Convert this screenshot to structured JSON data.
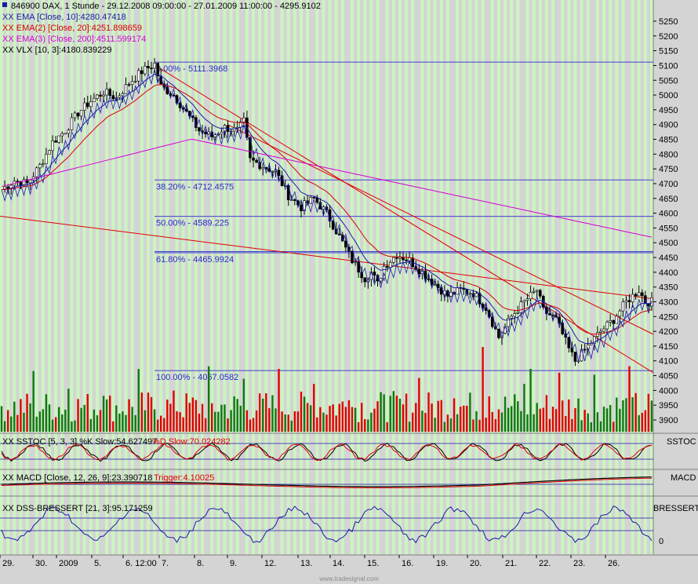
{
  "header": {
    "title": "846900 DAX, 1 Stunde - 29.12.2008 09:00:00 - 27.01.2009 11:00:00 - 4295.9102",
    "legend": [
      {
        "text": "XX EMA [Close, 10]:4280.47418",
        "color": "#1a1aa8"
      },
      {
        "text": "XX EMA(2) [Close, 20]:4251.898659",
        "color": "#d40000"
      },
      {
        "text": "XX EMA(3) [Close, 200]:4511.599174",
        "color": "#d400d4"
      },
      {
        "text": "XX VLX [10, 3]:4180.839229",
        "color": "#000000"
      }
    ]
  },
  "panels": {
    "sstoc": {
      "legend": "XX SSTOC [5, 3, 3] %K Slow:54.627497",
      "legend2": "%D Slow:70.024282",
      "tag": "SSTOC"
    },
    "macd": {
      "legend": "XX MACD [Close, 12, 26, 9]:23.390718",
      "legend2": "Trigger:4.10025",
      "tag": "MACD"
    },
    "dss": {
      "legend": "XX DSS-BRESSERT [21, 3]:95.171259",
      "tag": "BRESSERT",
      "zero_label": "0"
    }
  },
  "watermark": "www.tradesignal.com",
  "chart_data": {
    "type": "candlestick",
    "title": "846900 DAX, 1 Stunde - 29.12.2008 09:00:00 - 27.01.2009 11:00:00 - 4295.9102",
    "yticks": [
      3900,
      3950,
      4000,
      4050,
      4100,
      4150,
      4200,
      4250,
      4300,
      4350,
      4400,
      4450,
      4500,
      4550,
      4600,
      4650,
      4700,
      4750,
      4800,
      4850,
      4900,
      4950,
      5000,
      5050,
      5100,
      5150,
      5200,
      5250
    ],
    "ylim": [
      3870,
      5290
    ],
    "x_labels": [
      "29.",
      "30.",
      "2009",
      "5.",
      "6. 12:00",
      "7.",
      "8.",
      "9.",
      "12.",
      "13.",
      "14.",
      "15.",
      "16.",
      "19.",
      "20.",
      "21.",
      "22.",
      "23.",
      "26."
    ],
    "fibonacci": [
      {
        "label": "0.00% - 5111.3968",
        "value": 5111.3968
      },
      {
        "label": "38.20% - 4712.4575",
        "value": 4712.4575
      },
      {
        "label": "50.00% - 4589.225",
        "value": 4589.225
      },
      {
        "label": "61.80% - 4465.9924",
        "value": 4465.9924
      },
      {
        "label": "100.00% - 4067.0582",
        "value": 4067.0582
      }
    ],
    "close_path": [
      [
        0,
        4680
      ],
      [
        4,
        4710
      ],
      [
        8,
        4700
      ],
      [
        12,
        4760
      ],
      [
        16,
        4840
      ],
      [
        20,
        4880
      ],
      [
        24,
        4940
      ],
      [
        28,
        4980
      ],
      [
        32,
        5010
      ],
      [
        36,
        4990
      ],
      [
        40,
        5040
      ],
      [
        44,
        5080
      ],
      [
        48,
        5105
      ],
      [
        50,
        5030
      ],
      [
        54,
        5000
      ],
      [
        58,
        4940
      ],
      [
        62,
        4880
      ],
      [
        66,
        4860
      ],
      [
        70,
        4890
      ],
      [
        74,
        4880
      ],
      [
        76,
        4910
      ],
      [
        78,
        4780
      ],
      [
        82,
        4760
      ],
      [
        86,
        4740
      ],
      [
        90,
        4660
      ],
      [
        94,
        4620
      ],
      [
        98,
        4650
      ],
      [
        102,
        4600
      ],
      [
        106,
        4520
      ],
      [
        110,
        4440
      ],
      [
        114,
        4380
      ],
      [
        116,
        4400
      ],
      [
        118,
        4360
      ],
      [
        120,
        4420
      ],
      [
        124,
        4460
      ],
      [
        128,
        4440
      ],
      [
        132,
        4400
      ],
      [
        136,
        4360
      ],
      [
        140,
        4320
      ],
      [
        144,
        4340
      ],
      [
        148,
        4330
      ],
      [
        152,
        4280
      ],
      [
        156,
        4180
      ],
      [
        160,
        4250
      ],
      [
        164,
        4300
      ],
      [
        168,
        4340
      ],
      [
        170,
        4270
      ],
      [
        174,
        4240
      ],
      [
        178,
        4140
      ],
      [
        180,
        4100
      ],
      [
        184,
        4150
      ],
      [
        188,
        4200
      ],
      [
        192,
        4240
      ],
      [
        196,
        4300
      ],
      [
        200,
        4340
      ],
      [
        202,
        4300
      ]
    ],
    "indicators": {
      "ema10_last": 4280.47418,
      "ema20_last": 4251.898659,
      "ema200_last": 4511.599174,
      "vlx_last": 4180.839229,
      "sstoc_k": 54.627497,
      "sstoc_d": 70.024282,
      "macd": 23.390718,
      "macd_trigger": 4.10025,
      "dss": 95.171259
    }
  }
}
